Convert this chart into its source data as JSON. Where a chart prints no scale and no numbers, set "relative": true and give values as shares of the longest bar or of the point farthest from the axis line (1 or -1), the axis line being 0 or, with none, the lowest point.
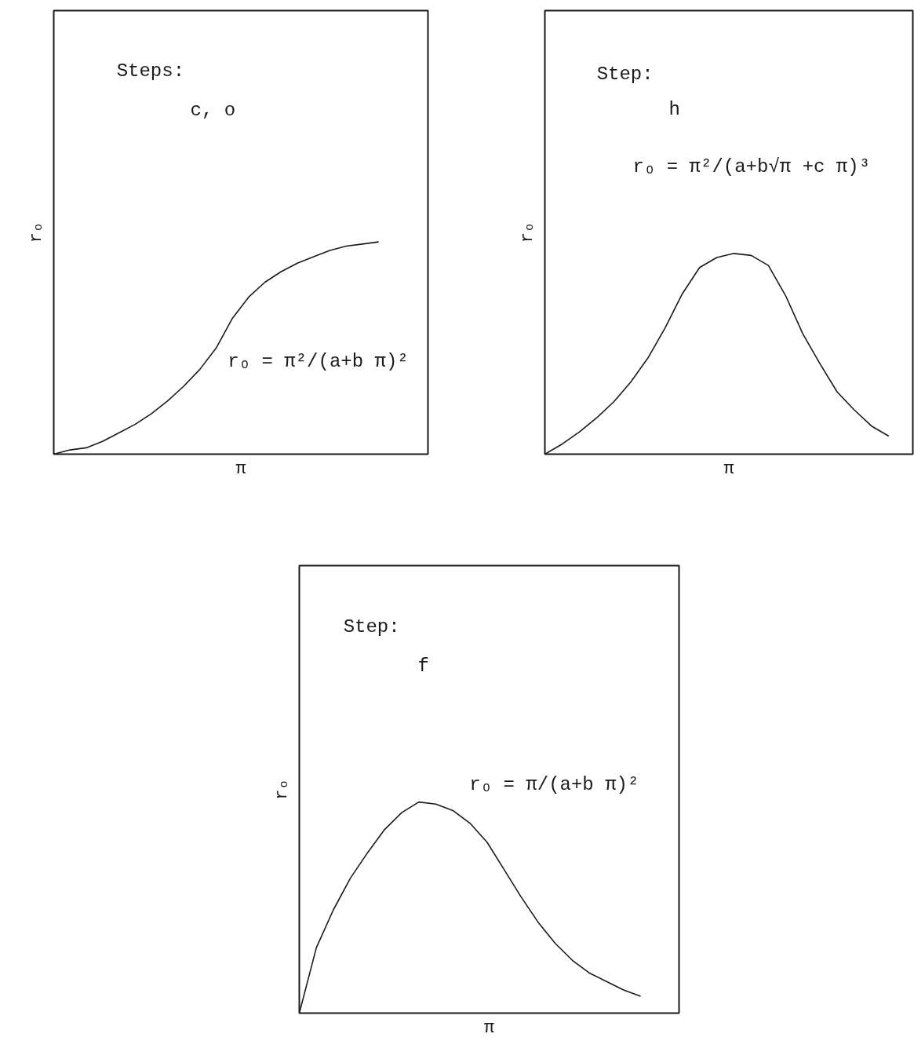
{
  "chart_data": [
    {
      "type": "line",
      "relative": true,
      "xlabel": "π",
      "ylabel": "rₒ",
      "categories": [
        null,
        null,
        null,
        null,
        null,
        null,
        null,
        null,
        null,
        null,
        null,
        null,
        null,
        null,
        null,
        null,
        null,
        null,
        null,
        null,
        null
      ],
      "values": [
        0,
        0.02,
        0.03,
        0.06,
        0.1,
        0.14,
        0.19,
        0.25,
        0.32,
        0.4,
        0.5,
        0.64,
        0.74,
        0.81,
        0.86,
        0.9,
        0.93,
        0.96,
        0.98,
        0.99,
        1
      ],
      "color": "#1a1a1a",
      "annotations": [
        "Steps:",
        "c, o",
        "rₒ = π²/(a+b π)²"
      ]
    },
    {
      "type": "line",
      "relative": true,
      "xlabel": "π",
      "ylabel": "rₒ",
      "categories": [
        null,
        null,
        null,
        null,
        null,
        null,
        null,
        null,
        null,
        null,
        null,
        null,
        null,
        null,
        null,
        null,
        null,
        null,
        null,
        null,
        null
      ],
      "values": [
        0,
        0.05,
        0.11,
        0.18,
        0.26,
        0.36,
        0.48,
        0.63,
        0.8,
        0.93,
        0.98,
        1,
        0.99,
        0.94,
        0.79,
        0.6,
        0.45,
        0.31,
        0.22,
        0.14,
        0.09
      ],
      "color": "#1a1a1a",
      "annotations": [
        "Step:",
        "h",
        "rₒ = π²/(a+b√π +c π)³"
      ]
    },
    {
      "type": "line",
      "relative": true,
      "xlabel": "π",
      "ylabel": "rₒ",
      "categories": [
        null,
        null,
        null,
        null,
        null,
        null,
        null,
        null,
        null,
        null,
        null,
        null,
        null,
        null,
        null,
        null,
        null,
        null,
        null,
        null,
        null
      ],
      "values": [
        0,
        0.31,
        0.49,
        0.64,
        0.76,
        0.87,
        0.95,
        1,
        0.99,
        0.96,
        0.9,
        0.81,
        0.68,
        0.55,
        0.43,
        0.33,
        0.25,
        0.19,
        0.15,
        0.11,
        0.08
      ],
      "color": "#1a1a1a",
      "annotations": [
        "Step:",
        "f",
        "rₒ = π/(a+b π)²"
      ]
    }
  ]
}
